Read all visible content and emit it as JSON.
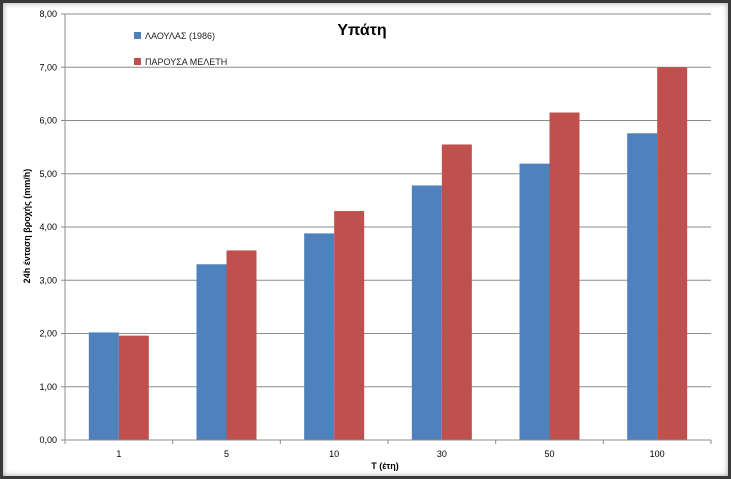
{
  "chart_data": {
    "type": "bar",
    "title": "Υπάτη",
    "xlabel": "T (έτη)",
    "ylabel": "24h ένταση βροχής (mm/h)",
    "categories": [
      "1",
      "5",
      "10",
      "30",
      "50",
      "100"
    ],
    "ylim": [
      0,
      8
    ],
    "yticks": [
      "0,00",
      "1,00",
      "2,00",
      "3,00",
      "4,00",
      "5,00",
      "6,00",
      "7,00",
      "8,00"
    ],
    "grid": true,
    "legend_position": "top-left",
    "series": [
      {
        "name": "ΛΑΟΥΛΑΣ (1986)",
        "color": "#4F81BD",
        "values": [
          2.02,
          3.3,
          3.88,
          4.78,
          5.19,
          5.76
        ]
      },
      {
        "name": "ΠΑΡΟΥΣΑ ΜΕΛΕΤΗ",
        "color": "#C0504D",
        "values": [
          1.96,
          3.56,
          4.3,
          5.55,
          6.15,
          7.0
        ]
      }
    ]
  }
}
